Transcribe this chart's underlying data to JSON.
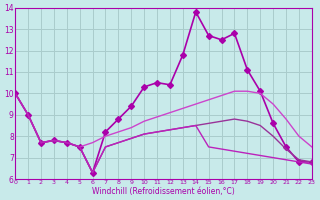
{
  "xlabel": "Windchill (Refroidissement éolien,°C)",
  "bg_color": "#c8eaea",
  "grid_color": "#aacccc",
  "xlim": [
    0,
    23
  ],
  "ylim": [
    6,
    14
  ],
  "xticks": [
    0,
    1,
    2,
    3,
    4,
    5,
    6,
    7,
    8,
    9,
    10,
    11,
    12,
    13,
    14,
    15,
    16,
    17,
    18,
    19,
    20,
    21,
    22,
    23
  ],
  "yticks": [
    6,
    7,
    8,
    9,
    10,
    11,
    12,
    13,
    14
  ],
  "series": [
    {
      "x": [
        0,
        1,
        2,
        3,
        4,
        5,
        6,
        7,
        8,
        9,
        10,
        11,
        12,
        13,
        14,
        15,
        16,
        17,
        18,
        19,
        20,
        21,
        22,
        23
      ],
      "y": [
        10.0,
        9.0,
        7.7,
        7.8,
        7.7,
        7.5,
        6.3,
        8.2,
        8.8,
        9.4,
        10.3,
        10.5,
        10.4,
        11.8,
        13.8,
        12.7,
        12.5,
        12.8,
        11.1,
        10.1,
        8.6,
        7.5,
        6.8,
        6.8
      ],
      "marker": "D",
      "color": "#aa00aa",
      "lw": 1.2,
      "ms": 3
    },
    {
      "x": [
        0,
        1,
        2,
        3,
        4,
        5,
        6,
        7,
        8,
        9,
        10,
        11,
        12,
        13,
        14,
        15,
        16,
        17,
        18,
        19,
        20,
        21,
        22,
        23
      ],
      "y": [
        10.0,
        9.0,
        7.7,
        7.8,
        7.7,
        7.5,
        7.7,
        8.0,
        8.2,
        8.4,
        8.7,
        8.9,
        9.1,
        9.3,
        9.5,
        9.7,
        9.9,
        10.1,
        10.1,
        10.0,
        9.5,
        8.8,
        8.0,
        7.5
      ],
      "marker": null,
      "color": "#cc44cc",
      "lw": 1.0,
      "ms": 0
    },
    {
      "x": [
        0,
        1,
        2,
        3,
        4,
        5,
        6,
        7,
        8,
        9,
        10,
        11,
        12,
        13,
        14,
        15,
        16,
        17,
        18,
        19,
        20,
        21,
        22,
        23
      ],
      "y": [
        10.0,
        9.0,
        7.7,
        7.8,
        7.7,
        7.5,
        6.3,
        7.5,
        7.7,
        7.9,
        8.1,
        8.2,
        8.3,
        8.4,
        8.5,
        8.6,
        8.7,
        8.8,
        8.7,
        8.5,
        8.0,
        7.4,
        6.9,
        6.8
      ],
      "marker": null,
      "color": "#993399",
      "lw": 1.0,
      "ms": 0
    },
    {
      "x": [
        0,
        1,
        2,
        3,
        4,
        5,
        6,
        7,
        8,
        9,
        10,
        11,
        12,
        13,
        14,
        15,
        16,
        17,
        18,
        19,
        20,
        21,
        22,
        23
      ],
      "y": [
        10.0,
        9.0,
        7.7,
        7.8,
        7.7,
        7.5,
        6.3,
        7.5,
        7.7,
        7.9,
        8.1,
        8.2,
        8.3,
        8.4,
        8.5,
        7.5,
        7.4,
        7.3,
        7.2,
        7.1,
        7.0,
        6.9,
        6.8,
        6.7
      ],
      "marker": null,
      "color": "#bb22bb",
      "lw": 1.0,
      "ms": 0
    }
  ]
}
